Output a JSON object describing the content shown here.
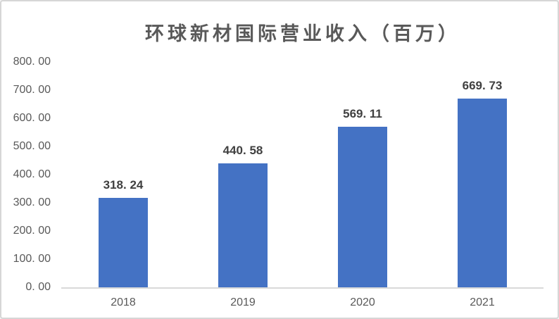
{
  "window": {
    "background": "#ffffff",
    "border_color": "#d6d6d6"
  },
  "chart_data": {
    "type": "bar",
    "title": "环球新材国际营业收入（百万）",
    "categories": [
      "2018",
      "2019",
      "2020",
      "2021"
    ],
    "values": [
      318.24,
      440.58,
      569.11,
      669.73
    ],
    "data_labels": [
      "318. 24",
      "440. 58",
      "569. 11",
      "669. 73"
    ],
    "xlabel": "",
    "ylabel": "",
    "ylim": [
      0,
      800
    ],
    "ytick_step": 100,
    "ytick_labels": [
      "800. 00",
      "700. 00",
      "600. 00",
      "500. 00",
      "400. 00",
      "300. 00",
      "200. 00",
      "100. 00",
      "0. 00"
    ],
    "grid": false,
    "legend": "none",
    "bar_color": "#4472C4",
    "axis_line_color": "#d9d9d9",
    "title_color": "#595959",
    "tick_color": "#595959",
    "data_label_color": "#404040"
  }
}
